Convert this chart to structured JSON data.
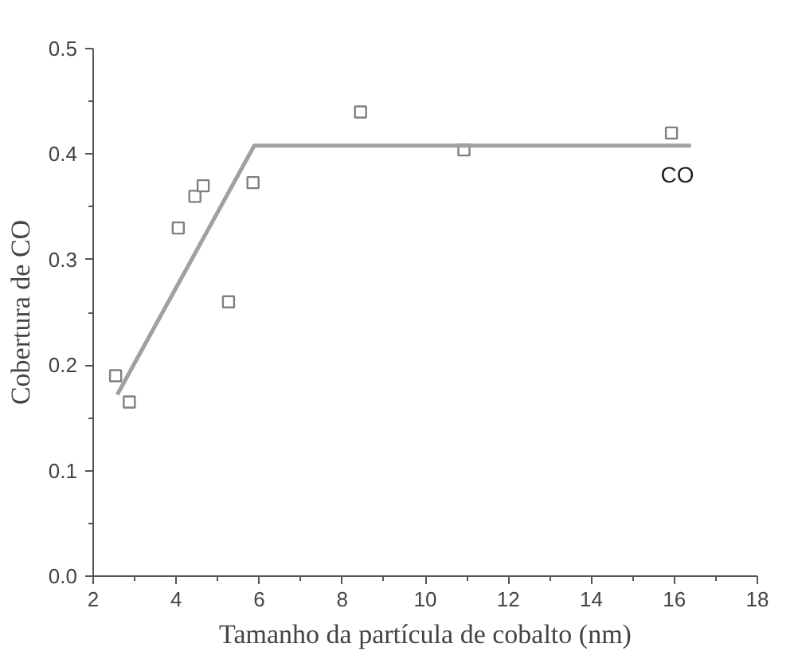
{
  "chart_data": {
    "type": "scatter",
    "xlabel": "Tamanho da partícula de cobalto (nm)",
    "ylabel": "Cobertura de CO",
    "xlim": [
      2,
      18
    ],
    "ylim": [
      0,
      0.5
    ],
    "xticks": [
      2,
      4,
      6,
      8,
      10,
      12,
      14,
      16,
      18
    ],
    "yticks": [
      {
        "value": 0,
        "label": "0.0"
      },
      0.1,
      0.2,
      0.3,
      0.4,
      0.5
    ],
    "grid": false,
    "series": [
      {
        "marker": "square",
        "color": "#808080",
        "x": [
          2.54,
          2.87,
          4.05,
          4.45,
          4.65,
          5.26,
          5.85,
          8.44,
          10.93,
          15.93
        ],
        "values": [
          0.19,
          0.165,
          0.33,
          0.36,
          0.37,
          0.26,
          0.373,
          0.44,
          0.404,
          0.42
        ]
      },
      {
        "type": "line",
        "name": "CO",
        "color": "#a0a0a0",
        "x": [
          2.58,
          5.88,
          16.4
        ],
        "values": [
          0.172,
          0.408,
          0.408
        ],
        "line_style": "solid"
      }
    ]
  }
}
